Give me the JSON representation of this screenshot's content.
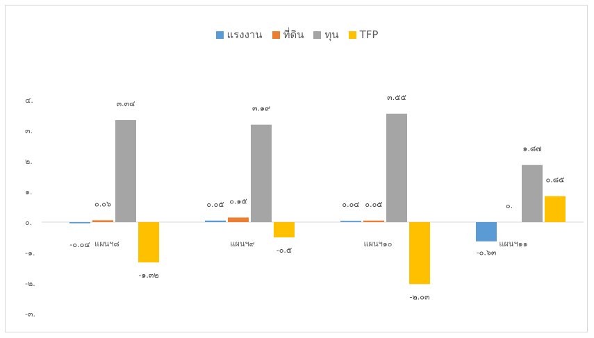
{
  "chart_data": {
    "type": "bar",
    "categories": [
      "แผนฯ๘",
      "แผนฯ๙",
      "แผนฯ๑๐",
      "แผนฯ๑๑"
    ],
    "series": [
      {
        "name": "แรงงาน",
        "color": "#5b9bd5",
        "values": [
          -0.04,
          0.05,
          0.04,
          -0.63
        ],
        "labels": [
          "-๐.๐๔",
          "๐.๐๕",
          "๐.๐๔",
          "-๐.๖๓"
        ]
      },
      {
        "name": "ที่ดิน",
        "color": "#ed7d31",
        "values": [
          0.06,
          0.15,
          0.05,
          0.0
        ],
        "labels": [
          "๐.๐๖",
          "๐.๑๕",
          "๐.๐๕",
          "๐."
        ]
      },
      {
        "name": "ทุน",
        "color": "#a5a5a5",
        "values": [
          3.34,
          3.19,
          3.55,
          1.87
        ],
        "labels": [
          "๓.๓๔",
          "๓.๑๙",
          "๓.๕๕",
          "๑.๘๗"
        ]
      },
      {
        "name": "TFP",
        "color": "#ffc000",
        "values": [
          -1.32,
          -0.5,
          -2.03,
          0.85
        ],
        "labels": [
          "-๑.๓๒",
          "-๐.๕",
          "-๒.๐๓",
          "๐.๘๕"
        ]
      }
    ],
    "yticks": [
      {
        "value": 4,
        "label": "๔."
      },
      {
        "value": 3,
        "label": "๓."
      },
      {
        "value": 2,
        "label": "๒."
      },
      {
        "value": 1,
        "label": "๑."
      },
      {
        "value": 0,
        "label": "๐."
      },
      {
        "value": -1,
        "label": "-๑."
      },
      {
        "value": -2,
        "label": "-๒."
      },
      {
        "value": -3,
        "label": "-๓."
      }
    ],
    "ylim": [
      -3,
      4
    ],
    "grid": false,
    "legend": "top-center"
  }
}
